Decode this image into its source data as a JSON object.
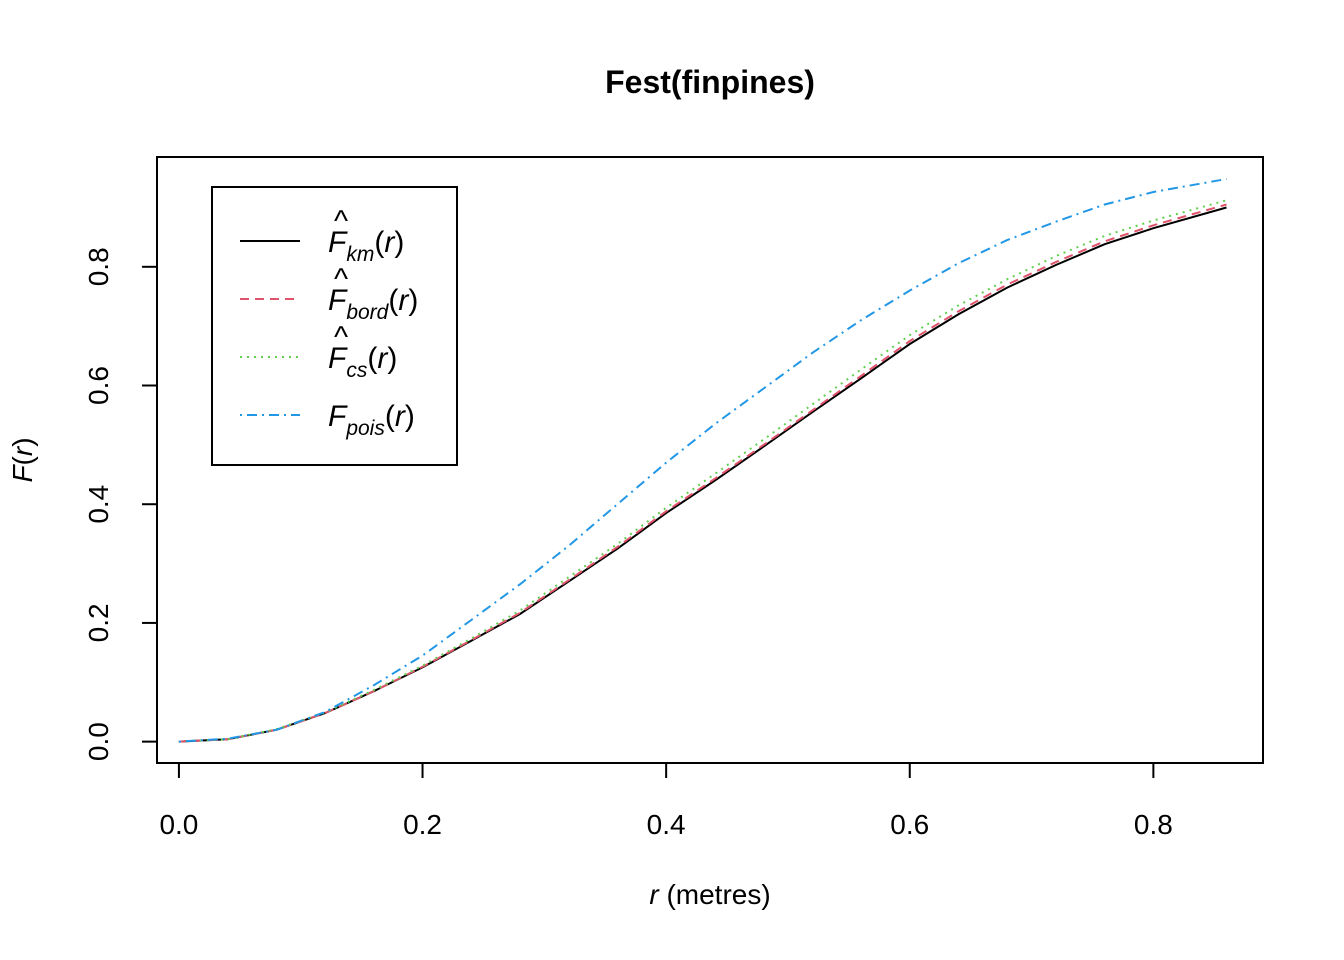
{
  "chart_data": {
    "type": "line",
    "title": "Fest(finpines)",
    "xlabel": {
      "var": "r",
      "unit": "(metres)"
    },
    "ylabel": {
      "func": "F",
      "arg": "r"
    },
    "xlim": [
      -0.018,
      0.89
    ],
    "ylim": [
      -0.036,
      0.985
    ],
    "xticks": [
      "0.0",
      "0.2",
      "0.4",
      "0.6",
      "0.8"
    ],
    "yticks": [
      "0.0",
      "0.2",
      "0.4",
      "0.6",
      "0.8"
    ],
    "grid": false,
    "legend_position": "top-left",
    "x": [
      0,
      0.04,
      0.08,
      0.12,
      0.16,
      0.2,
      0.24,
      0.28,
      0.32,
      0.36,
      0.4,
      0.44,
      0.48,
      0.52,
      0.56,
      0.6,
      0.64,
      0.68,
      0.72,
      0.76,
      0.8,
      0.86
    ],
    "series": [
      {
        "name": "km",
        "hat": true,
        "color": "#000000",
        "dash": "",
        "values": [
          0,
          0.004,
          0.02,
          0.048,
          0.085,
          0.125,
          0.17,
          0.215,
          0.27,
          0.325,
          0.385,
          0.44,
          0.497,
          0.555,
          0.612,
          0.67,
          0.72,
          0.765,
          0.803,
          0.838,
          0.865,
          0.9
        ]
      },
      {
        "name": "bord",
        "hat": true,
        "color": "#DF536B",
        "dash": "9,6",
        "values": [
          0,
          0.004,
          0.02,
          0.048,
          0.085,
          0.126,
          0.171,
          0.217,
          0.272,
          0.328,
          0.388,
          0.443,
          0.5,
          0.558,
          0.616,
          0.675,
          0.725,
          0.77,
          0.808,
          0.843,
          0.87,
          0.905
        ]
      },
      {
        "name": "cs",
        "hat": true,
        "color": "#61D04F",
        "dash": "2,5",
        "values": [
          0,
          0.004,
          0.021,
          0.049,
          0.087,
          0.128,
          0.174,
          0.221,
          0.277,
          0.333,
          0.394,
          0.451,
          0.509,
          0.568,
          0.627,
          0.685,
          0.735,
          0.779,
          0.818,
          0.852,
          0.878,
          0.912
        ]
      },
      {
        "name": "pois",
        "hat": false,
        "color": "#2297E6",
        "dash": "2,5,10,5",
        "values": [
          0,
          0.005,
          0.02,
          0.05,
          0.095,
          0.145,
          0.205,
          0.265,
          0.33,
          0.4,
          0.47,
          0.535,
          0.595,
          0.655,
          0.71,
          0.76,
          0.806,
          0.845,
          0.876,
          0.905,
          0.926,
          0.948
        ]
      }
    ]
  }
}
